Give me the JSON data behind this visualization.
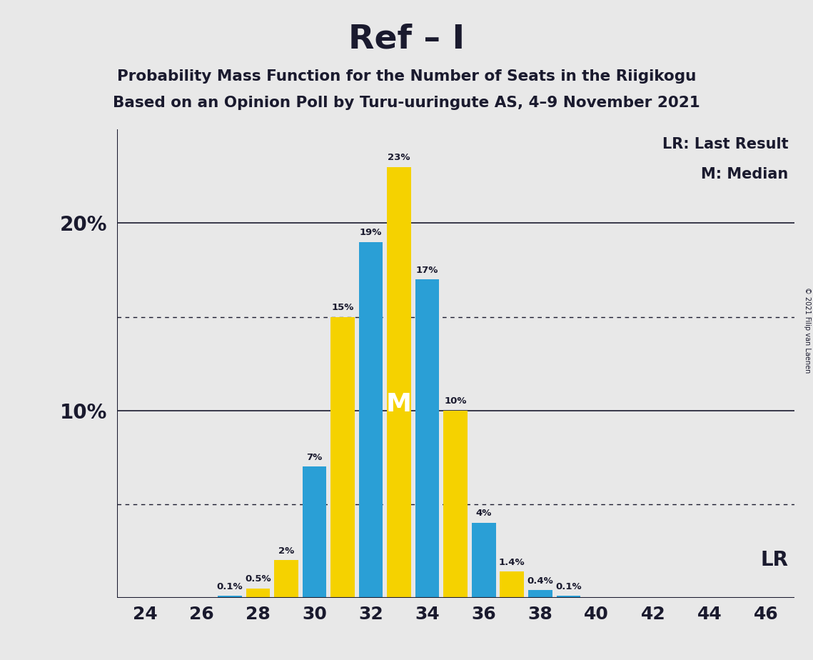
{
  "title": "Ref – I",
  "subtitle1": "Probability Mass Function for the Number of Seats in the Riigikogu",
  "subtitle2": "Based on an Opinion Poll by Turu-uuringute AS, 4–9 November 2021",
  "copyright": "© 2021 Filip van Laenen",
  "legend_lr": "LR: Last Result",
  "legend_m": "M: Median",
  "lr_label": "LR",
  "median_label": "M",
  "background_color": "#e8e8e8",
  "bar_color_blue": "#2a9fd6",
  "bar_color_yellow": "#f5d200",
  "median_text_color": "#ffffff",
  "seats": [
    24,
    25,
    26,
    27,
    28,
    29,
    30,
    31,
    32,
    33,
    34,
    35,
    36,
    37,
    38,
    39,
    40,
    41,
    42,
    43,
    44,
    45,
    46
  ],
  "values": [
    0.0,
    0.0,
    0.0,
    0.1,
    0.5,
    2.0,
    7.0,
    15.0,
    19.0,
    23.0,
    17.0,
    10.0,
    4.0,
    1.4,
    0.4,
    0.1,
    0.0,
    0.0,
    0.0,
    0.0,
    0.0,
    0.0,
    0.0
  ],
  "labels": [
    "0%",
    "0%",
    "0%",
    "0.1%",
    "0.5%",
    "2%",
    "7%",
    "15%",
    "19%",
    "23%",
    "17%",
    "10%",
    "4%",
    "1.4%",
    "0.4%",
    "0.1%",
    "0%",
    "0%",
    "0%",
    "0%",
    "0%",
    "0%",
    "0%"
  ],
  "colors": [
    "B",
    "B",
    "B",
    "B",
    "Y",
    "Y",
    "B",
    "Y",
    "B",
    "Y",
    "B",
    "Y",
    "B",
    "Y",
    "B",
    "B",
    "B",
    "B",
    "B",
    "B",
    "B",
    "B",
    "B"
  ],
  "median_seat": 33,
  "xlim_lo": 23,
  "xlim_hi": 47,
  "ylim_lo": 0,
  "ylim_hi": 25,
  "solid_yticks": [
    10,
    20
  ],
  "dotted_yticks": [
    5,
    15
  ],
  "lr_y": 2.0
}
